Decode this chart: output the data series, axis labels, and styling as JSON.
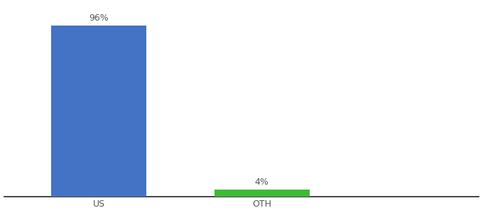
{
  "categories": [
    "US",
    "OTH"
  ],
  "values": [
    96,
    4
  ],
  "bar_colors": [
    "#4472c4",
    "#3dbb35"
  ],
  "value_labels": [
    "96%",
    "4%"
  ],
  "ylim": [
    0,
    108
  ],
  "xlim": [
    0,
    3.5
  ],
  "x_positions": [
    0.7,
    1.9
  ],
  "bar_width": 0.7,
  "background_color": "#ffffff",
  "label_fontsize": 9,
  "tick_fontsize": 9,
  "label_color": "#555555",
  "spine_color": "#222222"
}
